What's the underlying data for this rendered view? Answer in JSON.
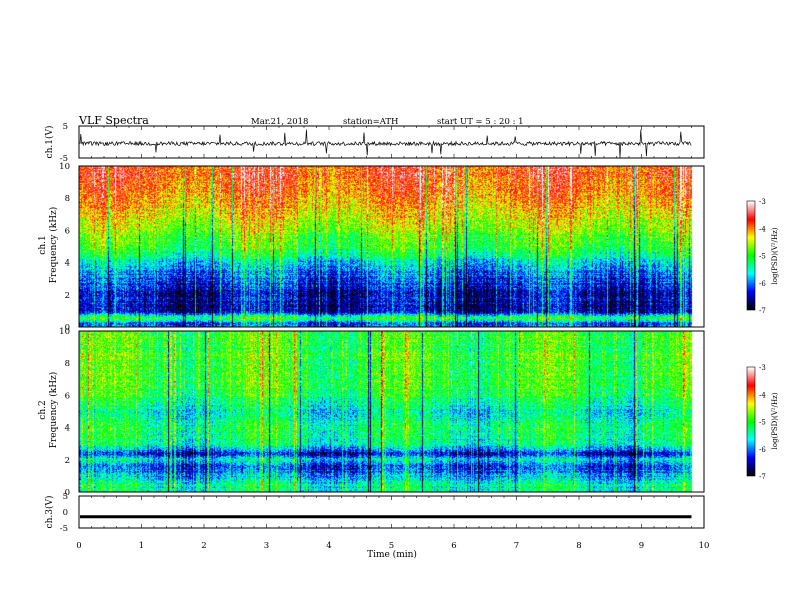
{
  "header": {
    "title": "VLF  Spectra",
    "date": "Mar.21, 2018",
    "station": "station=ATH",
    "start": "start  UT  =   5  : 20 : 1"
  },
  "chart_data": [
    {
      "type": "line",
      "name": "ch1-waveform",
      "ylabel": "ch.1(V)",
      "ylim": [
        -5,
        5
      ],
      "yticks": [
        "5",
        "-5"
      ],
      "xlim": [
        0,
        10
      ],
      "baseline": -0.5,
      "noise_amplitude": 1.2,
      "spike_amplitude": 4.5
    },
    {
      "type": "heatmap",
      "name": "ch1-spectrogram",
      "ylabel_top": "ch.1",
      "ylabel": "Frequency (kHz)",
      "ylim": [
        0,
        10
      ],
      "yticks": [
        "0",
        "2",
        "4",
        "6",
        "8",
        "10"
      ],
      "xlim": [
        0,
        10
      ],
      "x_end_data": 9.8,
      "profile_log_psd": [
        {
          "f": 0.0,
          "v": -6.0
        },
        {
          "f": 0.2,
          "v": -6.3
        },
        {
          "f": 0.55,
          "v": -5.0
        },
        {
          "f": 0.9,
          "v": -6.6
        },
        {
          "f": 2.0,
          "v": -6.5
        },
        {
          "f": 3.0,
          "v": -6.2
        },
        {
          "f": 4.0,
          "v": -5.8
        },
        {
          "f": 4.6,
          "v": -5.2
        },
        {
          "f": 5.5,
          "v": -4.9
        },
        {
          "f": 6.5,
          "v": -4.5
        },
        {
          "f": 7.5,
          "v": -4.2
        },
        {
          "f": 8.5,
          "v": -3.9
        },
        {
          "f": 10.0,
          "v": -3.8
        }
      ],
      "colorbar": {
        "label": "log(PSD)(V²/Hz)",
        "ticks": [
          "-3",
          "-4",
          "-5",
          "-6",
          "-7"
        ],
        "range": [
          -7,
          -3
        ]
      }
    },
    {
      "type": "heatmap",
      "name": "ch2-spectrogram",
      "ylabel_top": "ch.2",
      "ylabel": "Frequency (kHz)",
      "ylim": [
        0,
        10
      ],
      "yticks": [
        "0",
        "2",
        "4",
        "6",
        "8",
        "10"
      ],
      "xlim": [
        0,
        10
      ],
      "x_end_data": 9.8,
      "profile_log_psd": [
        {
          "f": 0.0,
          "v": -5.6
        },
        {
          "f": 0.4,
          "v": -5.4
        },
        {
          "f": 1.0,
          "v": -5.9
        },
        {
          "f": 1.6,
          "v": -6.3
        },
        {
          "f": 2.0,
          "v": -5.7
        },
        {
          "f": 2.4,
          "v": -6.4
        },
        {
          "f": 3.0,
          "v": -5.4
        },
        {
          "f": 4.0,
          "v": -5.3
        },
        {
          "f": 5.0,
          "v": -5.6
        },
        {
          "f": 6.0,
          "v": -5.1
        },
        {
          "f": 7.0,
          "v": -5.0
        },
        {
          "f": 8.5,
          "v": -5.0
        },
        {
          "f": 10.0,
          "v": -5.0
        }
      ],
      "colorbar": {
        "label": "log(PSD)(V²/Hz)",
        "ticks": [
          "-3",
          "-4",
          "-5",
          "-6",
          "-7"
        ],
        "range": [
          -7,
          -3
        ]
      }
    },
    {
      "type": "line",
      "name": "ch3-waveform",
      "ylabel": "ch.3(V)",
      "ylim": [
        -5,
        5
      ],
      "yticks": [
        "5",
        "0",
        "-5"
      ],
      "xlim": [
        0,
        10
      ],
      "baseline": -1.5
    }
  ],
  "xaxis": {
    "label": "Time  (min)",
    "ticks": [
      "0",
      "1",
      "2",
      "3",
      "4",
      "5",
      "6",
      "7",
      "8",
      "9",
      "10"
    ]
  },
  "colors": {
    "colormap": [
      "#000000",
      "#0000ff",
      "#00ffff",
      "#00ff00",
      "#ffff00",
      "#ff0000",
      "#ffffff"
    ]
  }
}
